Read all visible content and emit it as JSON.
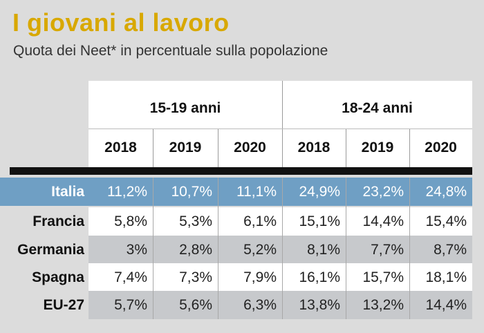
{
  "title": "I giovani al lavoro",
  "subtitle": "Quota dei Neet* in percentuale sulla popolazione",
  "colors": {
    "accent": "#d8a800",
    "highlight_row": "#6f9fc4",
    "header_bg": "#ffffff",
    "row_bg_odd": "#ffffff",
    "row_bg_even": "#c7c9cc",
    "thick_rule": "#111111"
  },
  "chart_data": {
    "type": "table",
    "groups": [
      {
        "label": "15-19 anni",
        "years": [
          "2018",
          "2019",
          "2020"
        ]
      },
      {
        "label": "18-24 anni",
        "years": [
          "2018",
          "2019",
          "2020"
        ]
      }
    ],
    "rows": [
      {
        "country": "Italia",
        "values": [
          "11,2%",
          "10,7%",
          "11,1%",
          "24,9%",
          "23,2%",
          "24,8%"
        ]
      },
      {
        "country": "Francia",
        "values": [
          "5,8%",
          "5,3%",
          "6,1%",
          "15,1%",
          "14,4%",
          "15,4%"
        ]
      },
      {
        "country": "Germania",
        "values": [
          "3%",
          "2,8%",
          "5,2%",
          "8,1%",
          "7,7%",
          "8,7%"
        ]
      },
      {
        "country": "Spagna",
        "values": [
          "7,4%",
          "7,3%",
          "7,9%",
          "16,1%",
          "15,7%",
          "18,1%"
        ]
      },
      {
        "country": "EU-27",
        "values": [
          "5,7%",
          "5,6%",
          "6,3%",
          "13,8%",
          "13,2%",
          "14,4%"
        ]
      }
    ]
  }
}
